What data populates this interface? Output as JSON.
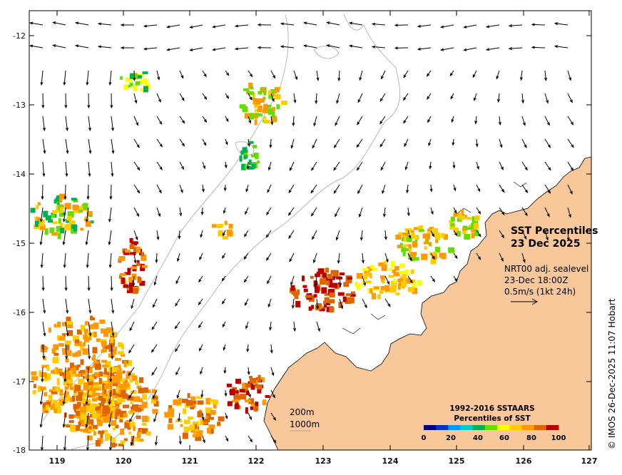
{
  "map": {
    "title_line1": "SST Percentiles",
    "title_line2": "23 Dec 2025",
    "product": "NRT00 adj. sealevel",
    "time": "23-Dec 18:00Z",
    "scale_text": "0.5m/s (1kt 24h)",
    "contour_200": "200m",
    "contour_1000": "1000m",
    "copyright": "© IMOS 26-Dec-2025 11:07 Hobart",
    "colors": {
      "land": "#f9c89a",
      "coast": "#000000",
      "bathy": "#a8a8a8",
      "arrow": "#000000"
    }
  },
  "axes": {
    "x_ticks": [
      "119",
      "120",
      "121",
      "122",
      "123",
      "124",
      "125",
      "126",
      "127"
    ],
    "y_ticks": [
      "-12",
      "-13",
      "-14",
      "-15",
      "-16",
      "-17",
      "-18"
    ]
  },
  "legend": {
    "title_line1": "1992-2016 SSTAARS",
    "title_line2": "Percentiles of SST",
    "ticks": [
      "0",
      "20",
      "40",
      "60",
      "80",
      "100"
    ],
    "colors": [
      "#00007f",
      "#0033cc",
      "#0099ff",
      "#00cccc",
      "#00b050",
      "#66dd00",
      "#ffff00",
      "#ffcc00",
      "#ff9900",
      "#dd6600",
      "#bb0000"
    ]
  }
}
